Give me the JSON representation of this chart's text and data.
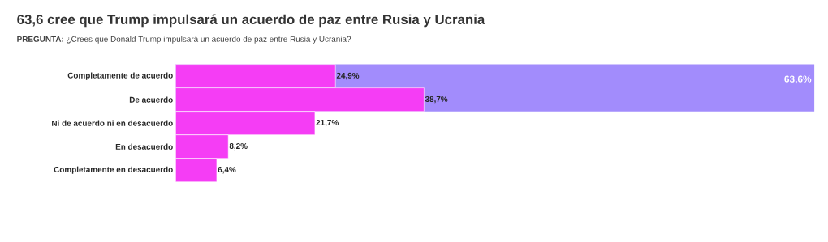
{
  "chart_data": {
    "type": "bar",
    "orientation": "horizontal",
    "title": "63,6 cree que Trump impulsará un acuerdo de paz entre Rusia y Ucrania",
    "subtitle": "**PREGUNTA:** ¿Crees que Donald Trump impulsará un acuerdo de paz entre Rusia y Ucrania?",
    "categories": [
      "Completamente de acuerdo",
      "De acuerdo",
      "Ni de acuerdo ni en desacuerdo",
      "En desacuerdo",
      "Completamente en desacuerdo"
    ],
    "values": [
      24.9,
      38.7,
      21.7,
      8.2,
      6.4
    ],
    "value_labels": [
      "24,9%",
      "38,7%",
      "21,7%",
      "8,2%",
      "6,4%"
    ],
    "color": "#f53df5",
    "xlim": [
      0,
      99.5
    ],
    "tick_labels": "y",
    "bands": [
      {
        "axis": "y",
        "from": "Completamente de acuerdo",
        "to": "De acuerdo",
        "label": "63,6%",
        "color": "#a28cfc"
      }
    ]
  }
}
